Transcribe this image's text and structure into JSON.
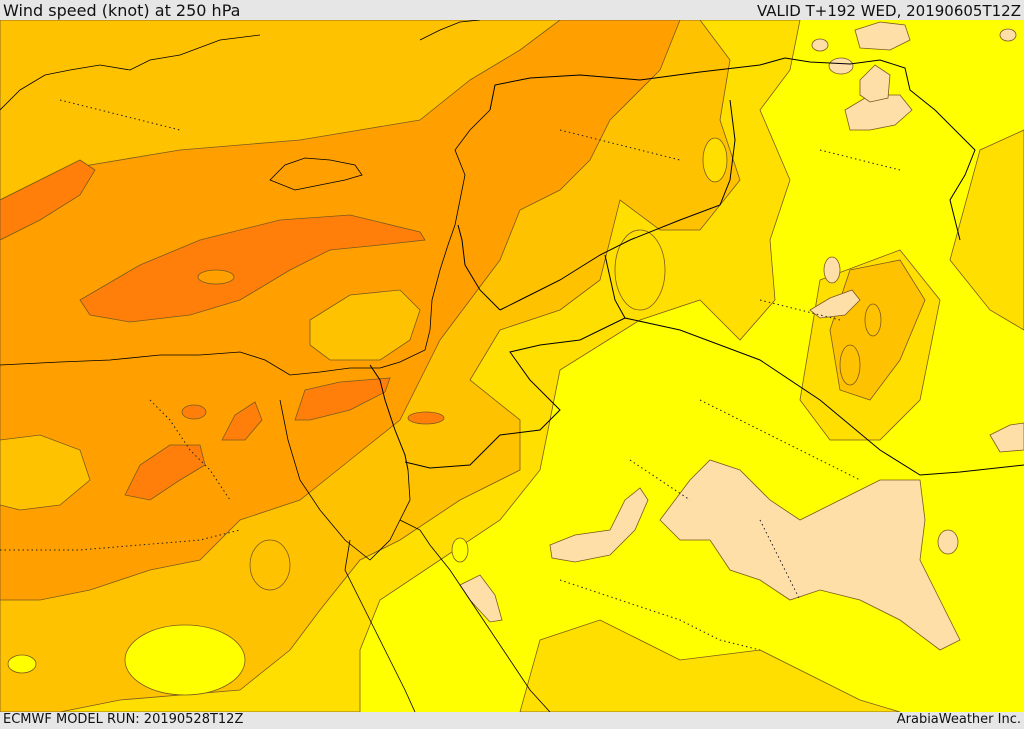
{
  "header": {
    "title": "Wind speed (knot) at 250 hPa",
    "valid": "VALID T+192 WED, 20190605T12Z"
  },
  "footer": {
    "model_run": "ECMWF MODEL RUN: 20190528T12Z",
    "provider": "ArabiaWeather Inc."
  },
  "map": {
    "colors": {
      "wind_dark_orange": "#ff7f0a",
      "wind_orange": "#ffa000",
      "wind_amber": "#ffc200",
      "wind_gold": "#ffdf00",
      "wind_yellow": "#ffff00",
      "wind_light": "#fedfa7",
      "contour_line": "#7a5a20",
      "border_line": "#000000"
    },
    "layers": [
      "wind-speed-shading",
      "wind-speed-contours",
      "country-borders",
      "coastlines",
      "internal-boundaries"
    ]
  }
}
